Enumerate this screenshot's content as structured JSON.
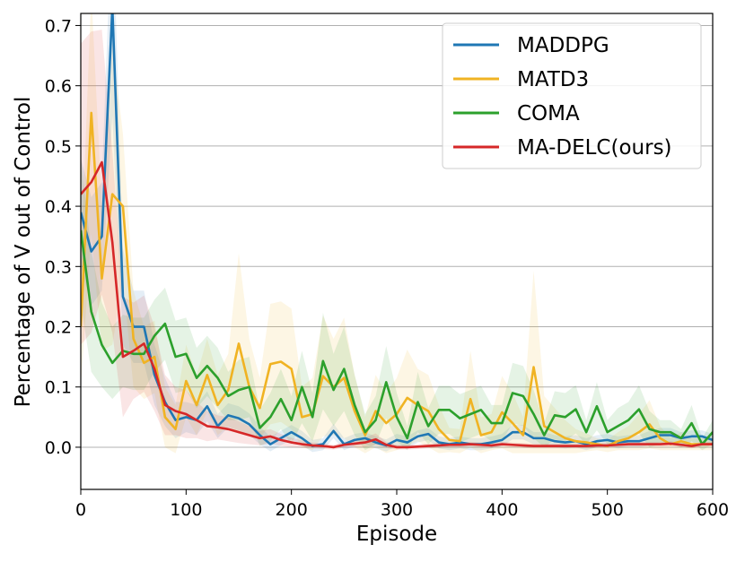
{
  "chart_data": {
    "type": "line",
    "title": "",
    "xlabel": "Episode",
    "ylabel": "Percentage of V out of Control",
    "xlim": [
      0,
      600
    ],
    "ylim": [
      -0.07,
      0.72
    ],
    "xticks": [
      0,
      100,
      200,
      300,
      400,
      500,
      600
    ],
    "yticks": [
      0.0,
      0.1,
      0.2,
      0.3,
      0.4,
      0.5,
      0.6,
      0.7
    ],
    "ytick_labels": [
      "0.0",
      "0.1",
      "0.2",
      "0.3",
      "0.4",
      "0.5",
      "0.6",
      "0.7"
    ],
    "grid": "horizontal",
    "legend_position": "top-right",
    "shaded_bands": true,
    "x": [
      0,
      10,
      20,
      30,
      40,
      50,
      60,
      70,
      80,
      90,
      100,
      110,
      120,
      130,
      140,
      150,
      160,
      170,
      180,
      190,
      200,
      210,
      220,
      230,
      240,
      250,
      260,
      270,
      280,
      290,
      300,
      310,
      320,
      330,
      340,
      350,
      360,
      370,
      380,
      390,
      400,
      410,
      420,
      430,
      440,
      450,
      460,
      470,
      480,
      490,
      500,
      510,
      520,
      530,
      540,
      550,
      560,
      570,
      580,
      590,
      600
    ],
    "series": [
      {
        "name": "MADDPG",
        "color": "#1f77b4",
        "values": [
          0.39,
          0.325,
          0.35,
          0.73,
          0.25,
          0.2,
          0.2,
          0.12,
          0.075,
          0.045,
          0.05,
          0.045,
          0.068,
          0.035,
          0.053,
          0.048,
          0.038,
          0.02,
          0.005,
          0.015,
          0.025,
          0.015,
          0.002,
          0.005,
          0.027,
          0.005,
          0.012,
          0.015,
          0.008,
          0.003,
          0.012,
          0.008,
          0.018,
          0.022,
          0.008,
          0.005,
          0.008,
          0.005,
          0.005,
          0.008,
          0.012,
          0.025,
          0.025,
          0.015,
          0.015,
          0.01,
          0.008,
          0.01,
          0.005,
          0.01,
          0.012,
          0.008,
          0.01,
          0.01,
          0.015,
          0.02,
          0.02,
          0.015,
          0.018,
          0.018,
          0.012
        ],
        "band": [
          0.09,
          0.09,
          0.09,
          0.18,
          0.08,
          0.06,
          0.06,
          0.05,
          0.04,
          0.03,
          0.025,
          0.025,
          0.025,
          0.02,
          0.02,
          0.02,
          0.018,
          0.015,
          0.012,
          0.012,
          0.012,
          0.012,
          0.01,
          0.01,
          0.012,
          0.01,
          0.01,
          0.01,
          0.01,
          0.01,
          0.01,
          0.01,
          0.01,
          0.01,
          0.01,
          0.01,
          0.01,
          0.01,
          0.01,
          0.01,
          0.01,
          0.012,
          0.012,
          0.01,
          0.01,
          0.01,
          0.01,
          0.01,
          0.01,
          0.01,
          0.01,
          0.01,
          0.01,
          0.01,
          0.012,
          0.012,
          0.012,
          0.01,
          0.01,
          0.01,
          0.01
        ]
      },
      {
        "name": "MATD3",
        "color": "#f0b323",
        "values": [
          0.2,
          0.555,
          0.28,
          0.42,
          0.4,
          0.18,
          0.14,
          0.15,
          0.05,
          0.03,
          0.11,
          0.07,
          0.12,
          0.07,
          0.095,
          0.172,
          0.1,
          0.065,
          0.138,
          0.142,
          0.13,
          0.05,
          0.055,
          0.118,
          0.1,
          0.115,
          0.06,
          0.02,
          0.06,
          0.04,
          0.055,
          0.082,
          0.07,
          0.06,
          0.03,
          0.012,
          0.01,
          0.08,
          0.02,
          0.025,
          0.058,
          0.04,
          0.02,
          0.133,
          0.035,
          0.025,
          0.015,
          0.01,
          0.008,
          0.005,
          0.002,
          0.01,
          0.015,
          0.025,
          0.038,
          0.015,
          0.005,
          0.01,
          0.005,
          0.005,
          0.005
        ],
        "band": [
          0.1,
          0.2,
          0.12,
          0.25,
          0.12,
          0.08,
          0.06,
          0.06,
          0.05,
          0.04,
          0.06,
          0.05,
          0.06,
          0.05,
          0.06,
          0.15,
          0.08,
          0.05,
          0.1,
          0.1,
          0.1,
          0.05,
          0.06,
          0.1,
          0.08,
          0.1,
          0.06,
          0.03,
          0.06,
          0.05,
          0.06,
          0.08,
          0.06,
          0.06,
          0.04,
          0.02,
          0.02,
          0.08,
          0.03,
          0.03,
          0.06,
          0.05,
          0.03,
          0.16,
          0.05,
          0.04,
          0.03,
          0.02,
          0.015,
          0.01,
          0.01,
          0.015,
          0.02,
          0.03,
          0.04,
          0.02,
          0.01,
          0.015,
          0.01,
          0.01,
          0.01
        ]
      },
      {
        "name": "COMA",
        "color": "#2ca02c",
        "values": [
          0.36,
          0.225,
          0.17,
          0.14,
          0.16,
          0.155,
          0.155,
          0.185,
          0.205,
          0.15,
          0.155,
          0.115,
          0.135,
          0.115,
          0.085,
          0.095,
          0.1,
          0.032,
          0.05,
          0.08,
          0.045,
          0.1,
          0.05,
          0.143,
          0.095,
          0.13,
          0.07,
          0.025,
          0.045,
          0.108,
          0.05,
          0.015,
          0.075,
          0.035,
          0.062,
          0.062,
          0.048,
          0.055,
          0.062,
          0.04,
          0.04,
          0.09,
          0.085,
          0.055,
          0.02,
          0.053,
          0.05,
          0.063,
          0.025,
          0.068,
          0.025,
          0.035,
          0.045,
          0.063,
          0.03,
          0.025,
          0.025,
          0.015,
          0.04,
          0.005,
          0.025
        ],
        "band": [
          0.12,
          0.1,
          0.07,
          0.06,
          0.06,
          0.06,
          0.06,
          0.06,
          0.06,
          0.06,
          0.06,
          0.05,
          0.05,
          0.05,
          0.04,
          0.05,
          0.05,
          0.03,
          0.04,
          0.05,
          0.04,
          0.06,
          0.04,
          0.08,
          0.06,
          0.07,
          0.05,
          0.03,
          0.04,
          0.06,
          0.04,
          0.02,
          0.05,
          0.03,
          0.04,
          0.04,
          0.04,
          0.04,
          0.04,
          0.03,
          0.03,
          0.05,
          0.05,
          0.04,
          0.02,
          0.04,
          0.04,
          0.04,
          0.02,
          0.04,
          0.02,
          0.03,
          0.03,
          0.04,
          0.03,
          0.02,
          0.02,
          0.015,
          0.03,
          0.01,
          0.02
        ]
      },
      {
        "name": "MA-DELC(ours)",
        "color": "#d62728",
        "values": [
          0.42,
          0.44,
          0.473,
          0.34,
          0.15,
          0.16,
          0.172,
          0.13,
          0.07,
          0.06,
          0.055,
          0.045,
          0.035,
          0.033,
          0.03,
          0.025,
          0.02,
          0.015,
          0.018,
          0.012,
          0.008,
          0.005,
          0.003,
          0.002,
          0.0,
          0.004,
          0.006,
          0.008,
          0.013,
          0.004,
          0.0,
          0.0,
          0.001,
          0.002,
          0.003,
          0.004,
          0.004,
          0.005,
          0.004,
          0.003,
          0.005,
          0.004,
          0.003,
          0.002,
          0.002,
          0.002,
          0.002,
          0.002,
          0.002,
          0.003,
          0.003,
          0.004,
          0.005,
          0.005,
          0.005,
          0.005,
          0.006,
          0.004,
          0.002,
          0.005,
          0.005
        ],
        "band": [
          0.25,
          0.25,
          0.22,
          0.15,
          0.1,
          0.08,
          0.08,
          0.07,
          0.05,
          0.04,
          0.04,
          0.03,
          0.025,
          0.02,
          0.02,
          0.018,
          0.015,
          0.012,
          0.012,
          0.01,
          0.008,
          0.006,
          0.005,
          0.005,
          0.004,
          0.005,
          0.006,
          0.008,
          0.01,
          0.005,
          0.004,
          0.004,
          0.004,
          0.004,
          0.004,
          0.004,
          0.004,
          0.004,
          0.004,
          0.004,
          0.004,
          0.004,
          0.004,
          0.004,
          0.004,
          0.004,
          0.004,
          0.004,
          0.004,
          0.004,
          0.004,
          0.004,
          0.004,
          0.004,
          0.004,
          0.004,
          0.004,
          0.004,
          0.004,
          0.004,
          0.004
        ]
      }
    ]
  }
}
